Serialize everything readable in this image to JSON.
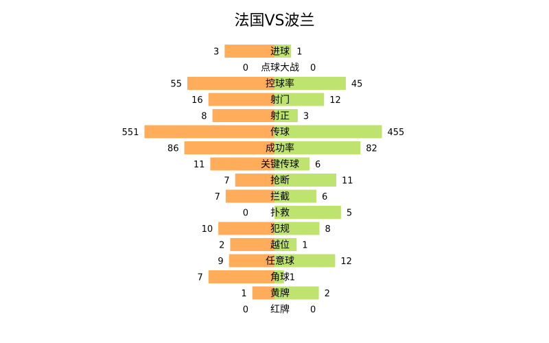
{
  "chart_data": {
    "type": "bar",
    "title": "法国VS波兰",
    "categories": [
      "进球",
      "点球大战",
      "控球率",
      "射门",
      "射正",
      "传球",
      "成功率",
      "关键传球",
      "抢断",
      "拦截",
      "扑救",
      "犯规",
      "越位",
      "任意球",
      "角球",
      "黄牌",
      "红牌"
    ],
    "series": [
      {
        "name": "",
        "values": [
          3,
          0,
          55,
          16,
          8,
          551,
          86,
          11,
          7,
          7,
          0,
          10,
          2,
          9,
          7,
          1,
          0
        ],
        "color": "#ffad5b"
      },
      {
        "name": "",
        "values": [
          1,
          0,
          45,
          12,
          3,
          455,
          82,
          6,
          11,
          6,
          5,
          8,
          1,
          12,
          1,
          2,
          0
        ],
        "color": "#bfe36f"
      }
    ]
  }
}
